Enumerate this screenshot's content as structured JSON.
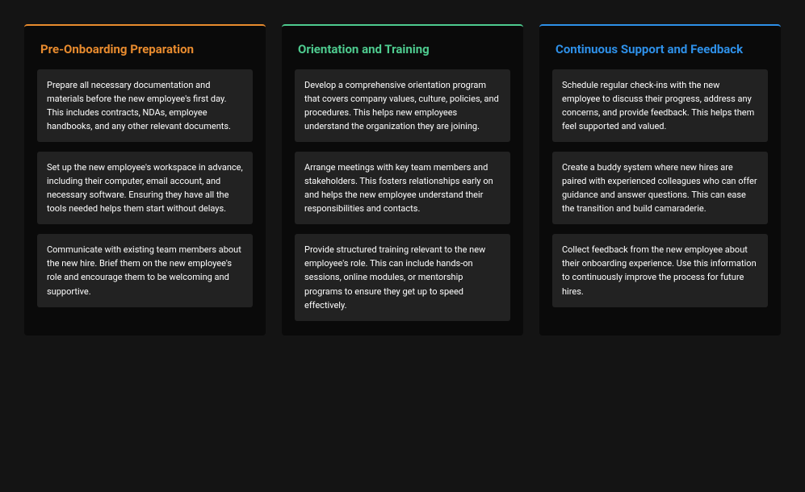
{
  "colors": {
    "page_background": "#141414",
    "column_background": "#0a0a0a",
    "item_background": "#222222",
    "item_text": "#ffffff"
  },
  "columns": [
    {
      "id": "pre-onboarding",
      "title": "Pre-Onboarding Preparation",
      "title_color": "#e88b2e",
      "border_color": "#e88b2e",
      "items": [
        "Prepare all necessary documentation and materials before the new employee's first day. This includes contracts, NDAs, employee handbooks, and any other relevant documents.",
        "Set up the new employee's workspace in advance, including their computer, email account, and necessary software. Ensuring they have all the tools needed helps them start without delays.",
        "Communicate with existing team members about the new hire. Brief them on the new employee's role and encourage them to be welcoming and supportive."
      ]
    },
    {
      "id": "orientation",
      "title": "Orientation and Training",
      "title_color": "#4ecb8f",
      "border_color": "#4ecb8f",
      "items": [
        "Develop a comprehensive orientation program that covers company values, culture, policies, and procedures. This helps new employees understand the organization they are joining.",
        "Arrange meetings with key team members and stakeholders. This fosters relationships early on and helps the new employee understand their responsibilities and contacts.",
        "Provide structured training relevant to the new employee's role. This can include hands-on sessions, online modules, or mentorship programs to ensure they get up to speed effectively."
      ]
    },
    {
      "id": "support",
      "title": "Continuous Support and Feedback",
      "title_color": "#2e90e8",
      "border_color": "#2e90e8",
      "items": [
        "Schedule regular check-ins with the new employee to discuss their progress, address any concerns, and provide feedback. This helps them feel supported and valued.",
        "Create a buddy system where new hires are paired with experienced colleagues who can offer guidance and answer questions. This can ease the transition and build camaraderie.",
        "Collect feedback from the new employee about their onboarding experience. Use this information to continuously improve the process for future hires."
      ]
    }
  ]
}
